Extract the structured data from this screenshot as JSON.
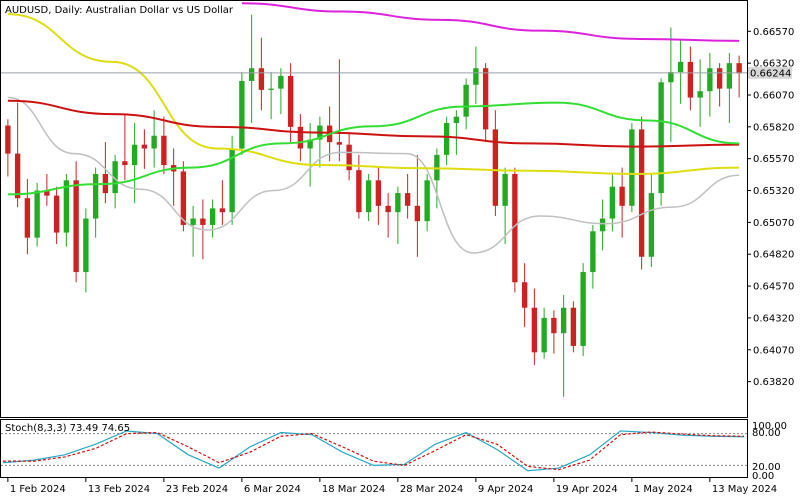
{
  "header": {
    "symbol_line": "AUDUSD, Daily:  Australian Dollar vs US Dollar"
  },
  "stoch": {
    "label": "Stoch(8,3,3) 73.49 74.65",
    "y_ticks": [
      "100.00",
      "80.00",
      "20.00",
      "0.00"
    ]
  },
  "current_price_label": "0.66244",
  "colors": {
    "bull": "#22aa22",
    "bear": "#cc2222",
    "ma_fast": "#c0c0c0",
    "ma_50": "#33dd33",
    "ma_100": "#dddd11",
    "ma_200": "#cc1111",
    "ma_long": "#dd22dd",
    "stoch_main": "#28a8c8",
    "stoch_signal": "#cc1111"
  },
  "chart_data": {
    "type": "candlestick",
    "price_axis_ticks": [
      "0.66570",
      "0.66320",
      "0.66070",
      "0.65820",
      "0.65570",
      "0.65320",
      "0.65070",
      "0.64820",
      "0.64570",
      "0.64320",
      "0.64070",
      "0.63820"
    ],
    "ylim": [
      0.6355,
      0.668
    ],
    "date_labels": [
      {
        "label": "1 Feb 2024",
        "index": 0
      },
      {
        "label": "13 Feb 2024",
        "index": 8
      },
      {
        "label": "23 Feb 2024",
        "index": 16
      },
      {
        "label": "6 Mar 2024",
        "index": 24
      },
      {
        "label": "18 Mar 2024",
        "index": 32
      },
      {
        "label": "28 Mar 2024",
        "index": 40
      },
      {
        "label": "9 Apr 2024",
        "index": 48
      },
      {
        "label": "19 Apr 2024",
        "index": 56
      },
      {
        "label": "1 May 2024",
        "index": 64
      },
      {
        "label": "13 May 2024",
        "index": 72
      }
    ],
    "current_price": 0.66244,
    "ohlc": [
      [
        0.6583,
        0.6588,
        0.6543,
        0.6561
      ],
      [
        0.6561,
        0.6601,
        0.6519,
        0.6526
      ],
      [
        0.6526,
        0.6541,
        0.6482,
        0.6495
      ],
      [
        0.6495,
        0.6538,
        0.6488,
        0.6532
      ],
      [
        0.6532,
        0.6545,
        0.652,
        0.6528
      ],
      [
        0.6528,
        0.6535,
        0.649,
        0.6499
      ],
      [
        0.6499,
        0.6545,
        0.6488,
        0.654
      ],
      [
        0.654,
        0.6555,
        0.646,
        0.6468
      ],
      [
        0.6468,
        0.6518,
        0.6452,
        0.651
      ],
      [
        0.651,
        0.655,
        0.6495,
        0.6545
      ],
      [
        0.6545,
        0.657,
        0.6522,
        0.653
      ],
      [
        0.653,
        0.656,
        0.6518,
        0.6555
      ],
      [
        0.6555,
        0.6592,
        0.654,
        0.6552
      ],
      [
        0.6552,
        0.6585,
        0.6522,
        0.6568
      ],
      [
        0.6568,
        0.658,
        0.6549,
        0.6565
      ],
      [
        0.6565,
        0.6595,
        0.655,
        0.6575
      ],
      [
        0.6575,
        0.659,
        0.6545,
        0.6552
      ],
      [
        0.6552,
        0.6565,
        0.652,
        0.6547
      ],
      [
        0.6547,
        0.6555,
        0.65,
        0.6505
      ],
      [
        0.6505,
        0.652,
        0.648,
        0.651
      ],
      [
        0.651,
        0.6525,
        0.6478,
        0.6505
      ],
      [
        0.6505,
        0.6525,
        0.6495,
        0.6518
      ],
      [
        0.6518,
        0.654,
        0.6505,
        0.6515
      ],
      [
        0.6515,
        0.6575,
        0.6505,
        0.6565
      ],
      [
        0.6565,
        0.6625,
        0.656,
        0.6618
      ],
      [
        0.6618,
        0.667,
        0.6585,
        0.6628
      ],
      [
        0.6628,
        0.6652,
        0.6595,
        0.6611
      ],
      [
        0.6611,
        0.6625,
        0.6588,
        0.6612
      ],
      [
        0.6612,
        0.6628,
        0.6592,
        0.6622
      ],
      [
        0.6622,
        0.6632,
        0.657,
        0.6582
      ],
      [
        0.6582,
        0.6592,
        0.6555,
        0.6565
      ],
      [
        0.6565,
        0.6585,
        0.6535,
        0.6572
      ],
      [
        0.6572,
        0.659,
        0.655,
        0.6583
      ],
      [
        0.6583,
        0.6598,
        0.6555,
        0.657
      ],
      [
        0.657,
        0.6635,
        0.6555,
        0.6568
      ],
      [
        0.6568,
        0.6578,
        0.654,
        0.6548
      ],
      [
        0.6548,
        0.656,
        0.651,
        0.6515
      ],
      [
        0.6515,
        0.6545,
        0.6508,
        0.654
      ],
      [
        0.654,
        0.655,
        0.6505,
        0.652
      ],
      [
        0.652,
        0.653,
        0.6495,
        0.6515
      ],
      [
        0.6515,
        0.6535,
        0.649,
        0.653
      ],
      [
        0.653,
        0.6545,
        0.651,
        0.652
      ],
      [
        0.652,
        0.656,
        0.648,
        0.6508
      ],
      [
        0.6508,
        0.6545,
        0.65,
        0.654
      ],
      [
        0.654,
        0.6565,
        0.6518,
        0.656
      ],
      [
        0.656,
        0.659,
        0.6552,
        0.6585
      ],
      [
        0.6585,
        0.6595,
        0.656,
        0.659
      ],
      [
        0.659,
        0.662,
        0.658,
        0.6615
      ],
      [
        0.6615,
        0.6645,
        0.66,
        0.6628
      ],
      [
        0.6628,
        0.6632,
        0.657,
        0.658
      ],
      [
        0.658,
        0.6595,
        0.6512,
        0.652
      ],
      [
        0.652,
        0.655,
        0.649,
        0.6545
      ],
      [
        0.6545,
        0.655,
        0.6452,
        0.646
      ],
      [
        0.646,
        0.6475,
        0.6425,
        0.644
      ],
      [
        0.644,
        0.6455,
        0.6395,
        0.6405
      ],
      [
        0.6405,
        0.644,
        0.64,
        0.6432
      ],
      [
        0.6432,
        0.6438,
        0.6404,
        0.642
      ],
      [
        0.642,
        0.645,
        0.637,
        0.644
      ],
      [
        0.644,
        0.6445,
        0.6405,
        0.641
      ],
      [
        0.641,
        0.6475,
        0.6402,
        0.6468
      ],
      [
        0.6468,
        0.6505,
        0.6455,
        0.65
      ],
      [
        0.65,
        0.6525,
        0.6485,
        0.651
      ],
      [
        0.651,
        0.6545,
        0.65,
        0.6535
      ],
      [
        0.6535,
        0.655,
        0.6495,
        0.652
      ],
      [
        0.652,
        0.6585,
        0.6515,
        0.658
      ],
      [
        0.658,
        0.659,
        0.647,
        0.648
      ],
      [
        0.648,
        0.6545,
        0.6472,
        0.653
      ],
      [
        0.653,
        0.662,
        0.652,
        0.6617
      ],
      [
        0.6617,
        0.666,
        0.657,
        0.6625
      ],
      [
        0.6625,
        0.665,
        0.66,
        0.6633
      ],
      [
        0.6633,
        0.6645,
        0.6595,
        0.6605
      ],
      [
        0.6605,
        0.6635,
        0.6582,
        0.661
      ],
      [
        0.661,
        0.664,
        0.659,
        0.6628
      ],
      [
        0.6628,
        0.6632,
        0.6598,
        0.6612
      ],
      [
        0.6612,
        0.664,
        0.6585,
        0.6632
      ],
      [
        0.6632,
        0.6638,
        0.6605,
        0.6624
      ]
    ],
    "ma_long": [
      0.6679,
      0.66725,
      0.6666,
      0.66575,
      0.6651,
      0.66495
    ],
    "ma_200": [
      0.66025,
      0.6592,
      0.6582,
      0.65775,
      0.65745,
      0.6569,
      0.65665,
      0.6568
    ],
    "ma_100": [
      0.66705,
      0.6633,
      0.6565,
      0.6552,
      0.65495,
      0.65475,
      0.6545,
      0.655
    ],
    "ma_50": [
      0.6529,
      0.6537,
      0.655,
      0.6569,
      0.65825,
      0.6598,
      0.6601,
      0.6587,
      0.6569
    ],
    "ma_fast": [
      0.6605,
      0.6561,
      0.6533,
      0.6501,
      0.6532,
      0.6562,
      0.6561,
      0.6483,
      0.6512,
      0.6506,
      0.6519,
      0.6544
    ],
    "stoch_main": [
      25,
      30,
      40,
      60,
      85,
      80,
      40,
      15,
      55,
      82,
      78,
      45,
      20,
      22,
      60,
      82,
      50,
      10,
      15,
      40,
      85,
      82,
      77,
      75,
      74
    ],
    "stoch_signal": [
      28,
      28,
      36,
      52,
      80,
      82,
      55,
      25,
      45,
      75,
      80,
      55,
      28,
      20,
      48,
      78,
      60,
      18,
      12,
      30,
      78,
      83,
      79,
      76,
      75
    ]
  }
}
